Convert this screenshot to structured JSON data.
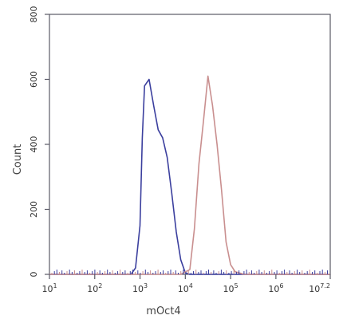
{
  "chart_data": {
    "type": "line",
    "title": "",
    "xlabel": "mOct4",
    "ylabel": "Count",
    "x_scale": "log10",
    "xlim": [
      1,
      7.2
    ],
    "ylim": [
      0,
      800
    ],
    "x_ticks": [
      1,
      2,
      3,
      4,
      5,
      6,
      7.2
    ],
    "x_tick_labels": [
      "10^1",
      "10^2",
      "10^3",
      "10^4",
      "10^5",
      "10^6",
      "10^7.2"
    ],
    "y_ticks": [
      0,
      200,
      400,
      600,
      800
    ],
    "y_tick_labels": [
      "0",
      "200",
      "400",
      "600",
      "800"
    ],
    "grid": false,
    "legend": "none",
    "series": [
      {
        "color": "#3b3f9e",
        "x": [
          1.0,
          2.0,
          2.8,
          2.9,
          3.0,
          3.05,
          3.1,
          3.2,
          3.3,
          3.4,
          3.5,
          3.6,
          3.7,
          3.8,
          3.9,
          4.0,
          4.1,
          4.3,
          5.0,
          6.0,
          7.2
        ],
        "y": [
          0,
          0,
          0,
          20,
          150,
          420,
          580,
          600,
          520,
          445,
          420,
          360,
          250,
          130,
          45,
          5,
          0,
          0,
          0,
          0,
          0
        ]
      },
      {
        "color": "#c98f8f",
        "x": [
          1.0,
          3.0,
          3.9,
          4.1,
          4.2,
          4.3,
          4.4,
          4.5,
          4.6,
          4.7,
          4.8,
          4.9,
          5.0,
          5.1,
          5.3,
          6.0,
          7.2
        ],
        "y": [
          0,
          0,
          0,
          15,
          140,
          340,
          470,
          610,
          520,
          400,
          260,
          100,
          30,
          8,
          0,
          0,
          0
        ]
      }
    ]
  }
}
